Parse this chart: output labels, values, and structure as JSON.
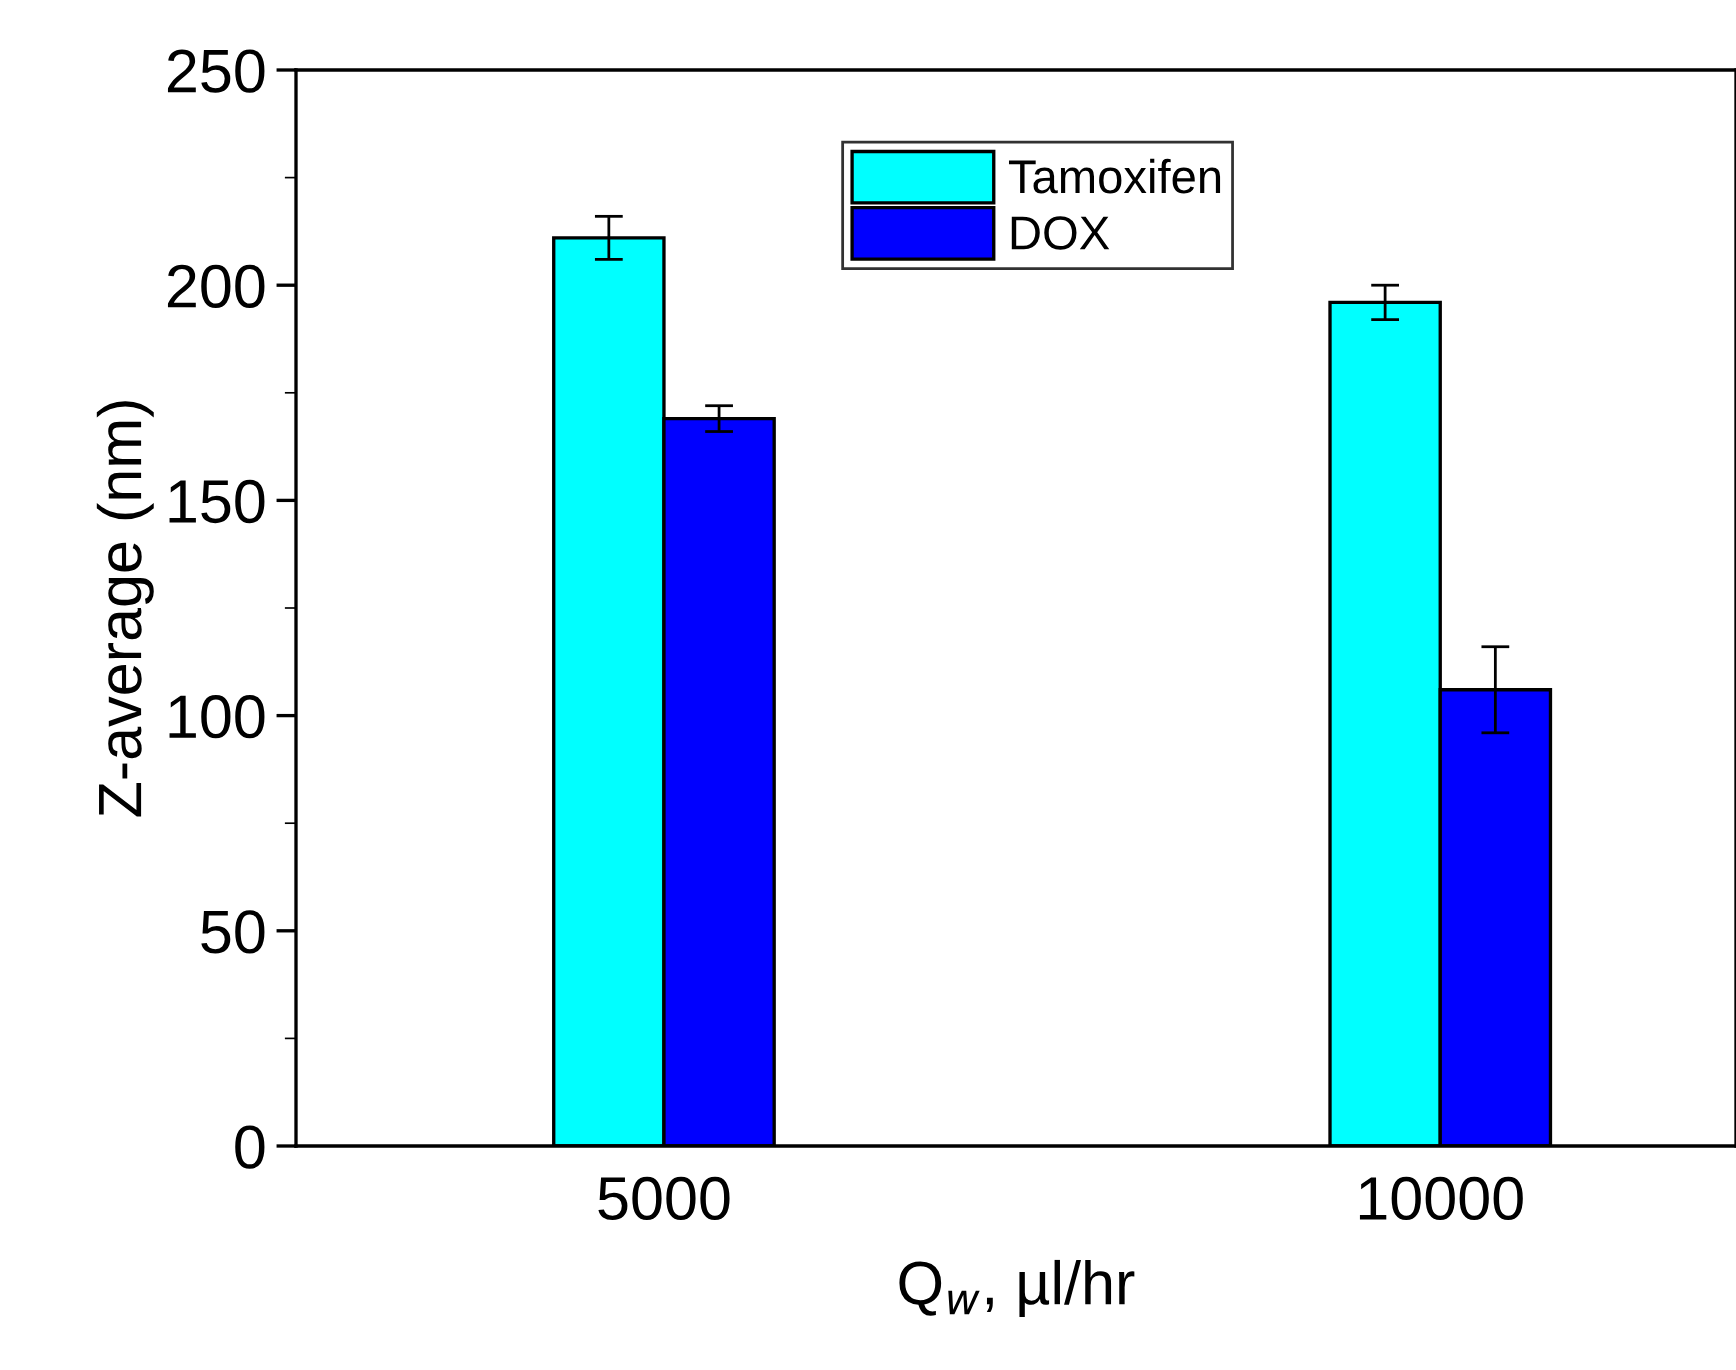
{
  "chart_data": {
    "type": "bar",
    "xlabel": "Q$_{w}$, µl/hr",
    "ylabel": "Z-average (nm)",
    "categories": [
      "5000",
      "10000"
    ],
    "series": [
      {
        "name": "Tamoxifen",
        "color": "#00ffff",
        "values": [
          211,
          196
        ],
        "errors": [
          5,
          4
        ]
      },
      {
        "name": "DOX",
        "color": "#0000ff",
        "values": [
          169,
          106
        ],
        "errors": [
          3,
          10
        ]
      }
    ],
    "ylim": [
      0,
      250
    ],
    "yticks": [
      0,
      50,
      100,
      150,
      200,
      250
    ],
    "grid": false,
    "legend": "top"
  }
}
